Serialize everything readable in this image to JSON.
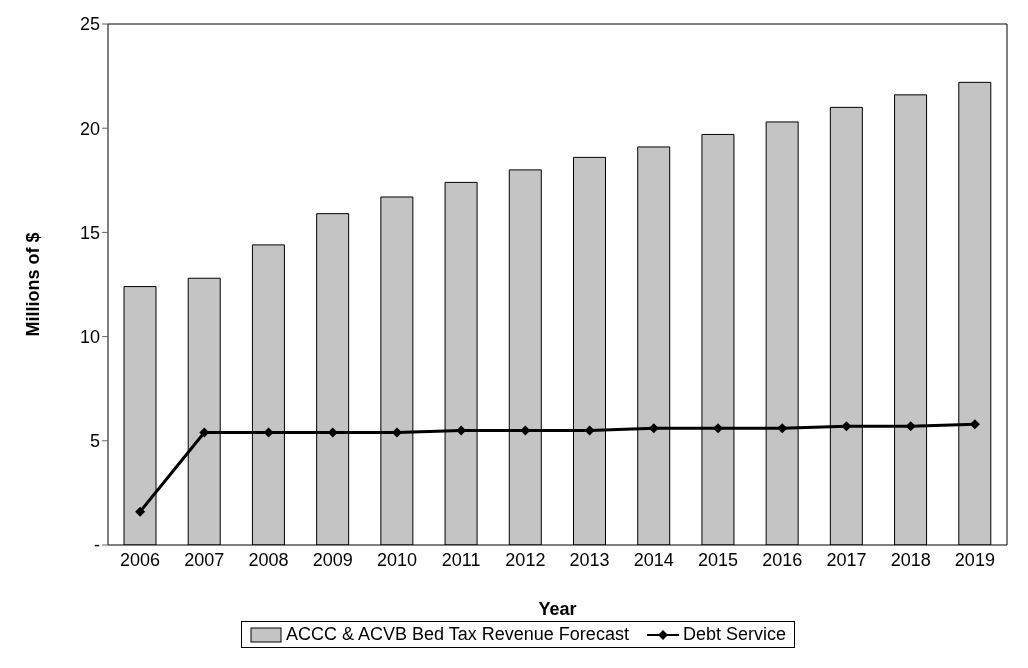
{
  "chart_data": {
    "type": "bar",
    "xlabel": "Year",
    "ylabel": "Millions of $",
    "categories": [
      "2006",
      "2007",
      "2008",
      "2009",
      "2010",
      "2011",
      "2012",
      "2013",
      "2014",
      "2015",
      "2016",
      "2017",
      "2018",
      "2019"
    ],
    "series": [
      {
        "name": "ACCC & ACVB Bed Tax Revenue Forecast",
        "color": "#c4c4c4",
        "values": [
          12.4,
          12.8,
          14.4,
          15.9,
          16.7,
          17.4,
          18.0,
          18.6,
          19.1,
          19.7,
          20.3,
          21.0,
          21.6,
          22.2
        ]
      },
      {
        "name": "Debt Service",
        "type": "line",
        "color": "#000000",
        "marker": "diamond",
        "values": [
          1.6,
          5.4,
          5.4,
          5.4,
          5.4,
          5.5,
          5.5,
          5.5,
          5.6,
          5.6,
          5.6,
          5.7,
          5.7,
          5.8
        ]
      }
    ],
    "ylim": [
      0,
      25
    ],
    "yticks": [
      {
        "value": 0,
        "label": "-"
      },
      5,
      10,
      15,
      20,
      25
    ],
    "grid": false,
    "legend": "bottom"
  }
}
